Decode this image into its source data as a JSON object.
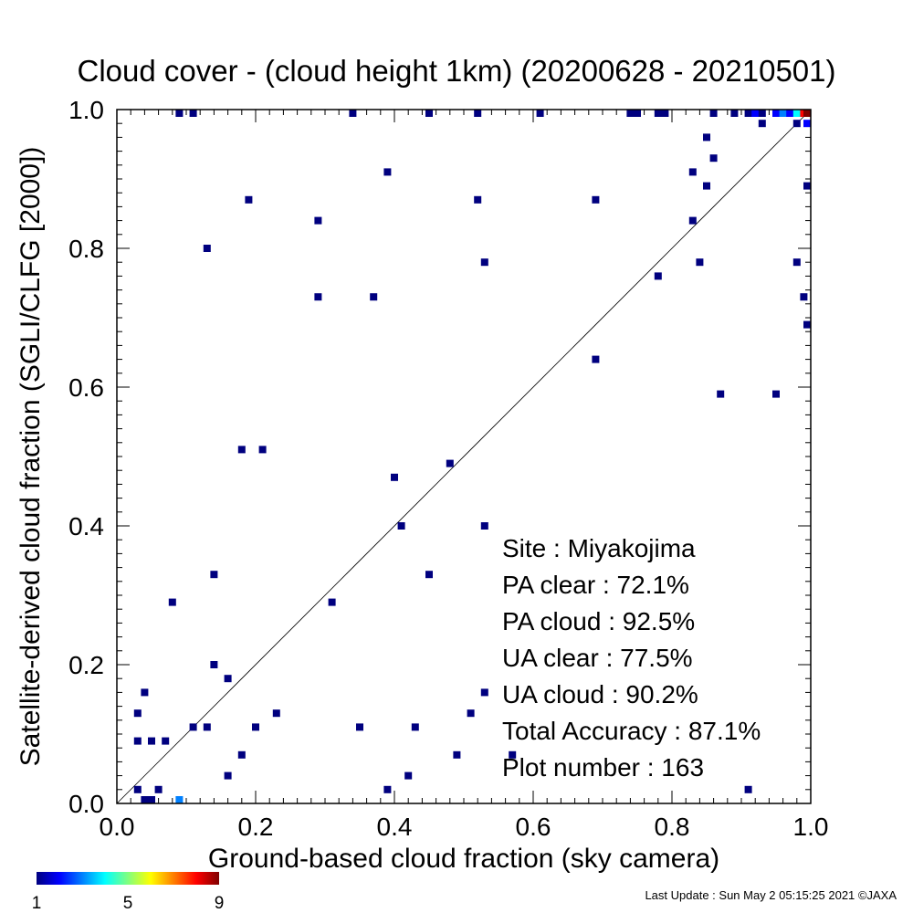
{
  "chart_data": {
    "type": "scatter",
    "title": "Cloud cover - (cloud height 1km)  (20200628 - 20210501)",
    "xlabel": "Ground-based cloud fraction (sky camera)",
    "ylabel": "Satellite-derived cloud fraction (SGLI/CLFG [2000])",
    "xlim": [
      0.0,
      1.0
    ],
    "ylim": [
      0.0,
      1.0
    ],
    "x_ticks": [
      "0.0",
      "0.2",
      "0.4",
      "0.6",
      "0.8",
      "1.0"
    ],
    "y_ticks": [
      "0.0",
      "0.2",
      "0.4",
      "0.6",
      "0.8",
      "1.0"
    ],
    "grid": false,
    "reference_line": "y = x",
    "colorbar": {
      "min_label": "1",
      "mid_label": "5",
      "max_label": "9",
      "min": 1,
      "max": 9
    },
    "stats": [
      {
        "label": "Site : Miyakojima"
      },
      {
        "label": "PA clear :  72.1%"
      },
      {
        "label": "PA cloud :  92.5%"
      },
      {
        "label": "UA clear :  77.5%"
      },
      {
        "label": "UA cloud :  90.2%"
      },
      {
        "label": "Total Accuracy :  87.1%"
      },
      {
        "label": "Plot number :       163"
      }
    ],
    "points": [
      [
        0.09,
        1.0,
        1
      ],
      [
        0.11,
        1.0,
        1
      ],
      [
        0.34,
        1.0,
        1
      ],
      [
        0.45,
        1.0,
        1
      ],
      [
        0.52,
        1.0,
        1
      ],
      [
        0.61,
        1.0,
        1
      ],
      [
        0.74,
        1.0,
        1
      ],
      [
        0.75,
        1.0,
        1
      ],
      [
        0.78,
        1.0,
        1
      ],
      [
        0.79,
        1.0,
        1
      ],
      [
        0.86,
        1.0,
        1
      ],
      [
        0.89,
        1.0,
        1
      ],
      [
        0.91,
        1.0,
        1
      ],
      [
        0.92,
        1.0,
        2
      ],
      [
        0.93,
        1.0,
        1
      ],
      [
        0.95,
        1.0,
        2
      ],
      [
        0.96,
        1.0,
        3
      ],
      [
        0.97,
        1.0,
        2
      ],
      [
        0.98,
        1.0,
        4
      ],
      [
        0.99,
        1.0,
        8
      ],
      [
        1.0,
        1.0,
        9
      ],
      [
        0.93,
        0.98,
        1
      ],
      [
        0.98,
        0.98,
        1
      ],
      [
        1.0,
        0.98,
        2
      ],
      [
        0.85,
        0.96,
        1
      ],
      [
        0.86,
        0.93,
        1
      ],
      [
        0.39,
        0.91,
        1
      ],
      [
        0.83,
        0.91,
        1
      ],
      [
        0.85,
        0.89,
        1
      ],
      [
        1.0,
        0.89,
        1
      ],
      [
        0.19,
        0.87,
        1
      ],
      [
        0.52,
        0.87,
        1
      ],
      [
        0.69,
        0.87,
        1
      ],
      [
        0.29,
        0.84,
        1
      ],
      [
        0.83,
        0.84,
        1
      ],
      [
        0.13,
        0.8,
        1
      ],
      [
        0.53,
        0.78,
        1
      ],
      [
        0.84,
        0.78,
        1
      ],
      [
        0.98,
        0.78,
        1
      ],
      [
        0.78,
        0.76,
        1
      ],
      [
        0.29,
        0.73,
        1
      ],
      [
        0.37,
        0.73,
        1
      ],
      [
        0.99,
        0.73,
        1
      ],
      [
        1.0,
        0.69,
        1
      ],
      [
        0.69,
        0.64,
        1
      ],
      [
        0.87,
        0.59,
        1
      ],
      [
        0.95,
        0.59,
        1
      ],
      [
        0.18,
        0.51,
        1
      ],
      [
        0.21,
        0.51,
        1
      ],
      [
        0.48,
        0.49,
        1
      ],
      [
        0.4,
        0.47,
        1
      ],
      [
        0.41,
        0.4,
        1
      ],
      [
        0.53,
        0.4,
        1
      ],
      [
        0.14,
        0.33,
        1
      ],
      [
        0.45,
        0.33,
        1
      ],
      [
        0.08,
        0.29,
        1
      ],
      [
        0.31,
        0.29,
        1
      ],
      [
        0.14,
        0.2,
        1
      ],
      [
        0.16,
        0.18,
        1
      ],
      [
        0.04,
        0.16,
        1
      ],
      [
        0.53,
        0.16,
        1
      ],
      [
        0.03,
        0.13,
        1
      ],
      [
        0.23,
        0.13,
        1
      ],
      [
        0.51,
        0.13,
        1
      ],
      [
        0.11,
        0.11,
        1
      ],
      [
        0.13,
        0.11,
        1
      ],
      [
        0.2,
        0.11,
        1
      ],
      [
        0.35,
        0.11,
        1
      ],
      [
        0.43,
        0.11,
        1
      ],
      [
        0.03,
        0.09,
        1
      ],
      [
        0.05,
        0.09,
        1
      ],
      [
        0.07,
        0.09,
        1
      ],
      [
        0.18,
        0.07,
        1
      ],
      [
        0.49,
        0.07,
        1
      ],
      [
        0.57,
        0.07,
        1
      ],
      [
        0.16,
        0.04,
        1
      ],
      [
        0.42,
        0.04,
        1
      ],
      [
        0.03,
        0.02,
        1
      ],
      [
        0.06,
        0.02,
        1
      ],
      [
        0.39,
        0.02,
        1
      ],
      [
        0.91,
        0.02,
        1
      ],
      [
        0.04,
        0.0,
        1
      ],
      [
        0.05,
        0.0,
        1
      ],
      [
        0.09,
        0.0,
        3
      ]
    ]
  },
  "footer": {
    "last_update": "Last Update : Sun May  2 05:15:25 2021  ©JAXA"
  }
}
